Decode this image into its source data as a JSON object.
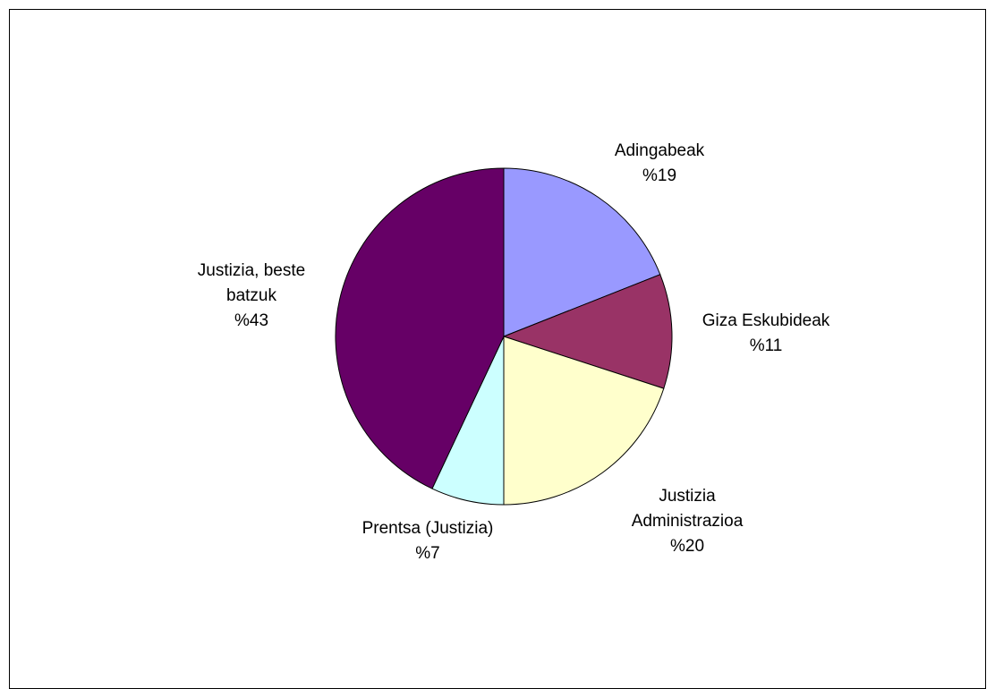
{
  "chart_data": {
    "type": "pie",
    "title": "",
    "legend": "none",
    "slices": [
      {
        "label": "Adingabeak",
        "label_lines": [
          "Adingabeak"
        ],
        "value": 19,
        "value_text": "%19",
        "color": "#9999FF"
      },
      {
        "label": "Giza Eskubideak",
        "label_lines": [
          "Giza Eskubideak"
        ],
        "value": 11,
        "value_text": "%11",
        "color": "#993366"
      },
      {
        "label": "Justizia Administrazioa",
        "label_lines": [
          "Justizia",
          "Administrazioa"
        ],
        "value": 20,
        "value_text": "%20",
        "color": "#FFFFCC"
      },
      {
        "label": "Prentsa (Justizia)",
        "label_lines": [
          "Prentsa (Justizia)"
        ],
        "value": 7,
        "value_text": "%7",
        "color": "#CCFFFF"
      },
      {
        "label": "Justizia, beste batzuk",
        "label_lines": [
          "Justizia, beste",
          "batzuk"
        ],
        "value": 43,
        "value_text": "%43",
        "color": "#660066"
      }
    ]
  }
}
